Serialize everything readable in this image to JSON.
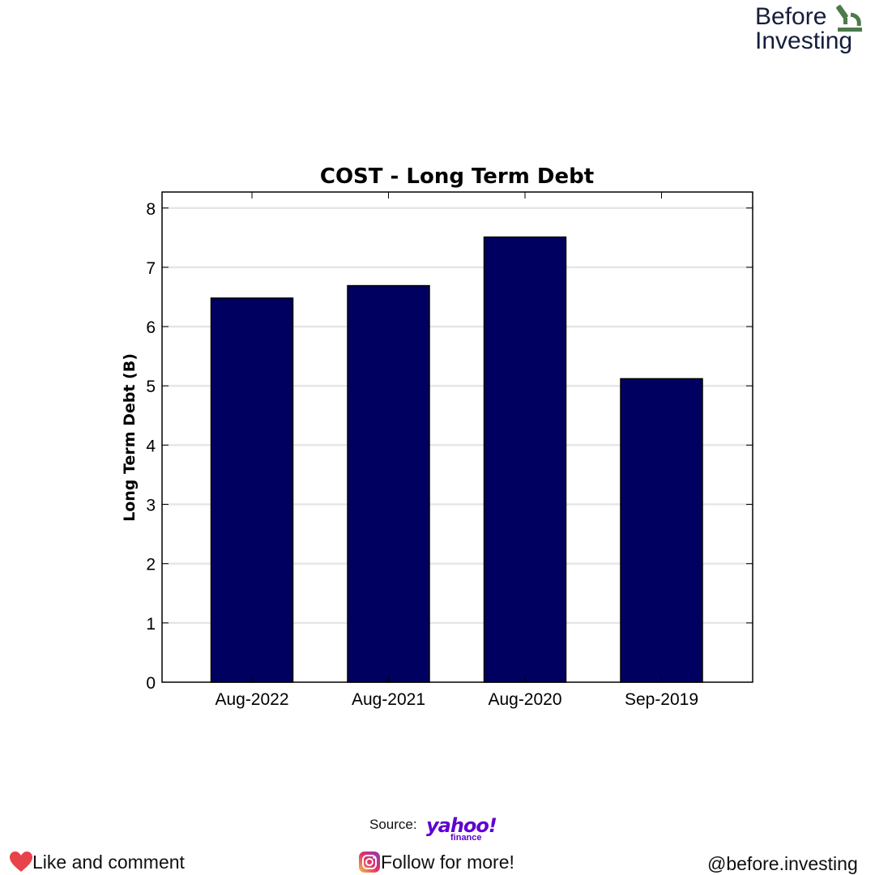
{
  "brand": {
    "line1": "Before",
    "line2": "Investing"
  },
  "chart_data": {
    "type": "bar",
    "title": "COST - Long Term Debt",
    "xlabel": "",
    "ylabel": "Long Term Debt (B)",
    "categories": [
      "Aug-2022",
      "Aug-2021",
      "Aug-2020",
      "Sep-2019"
    ],
    "values": [
      6.48,
      6.69,
      7.51,
      5.12
    ],
    "ylim": [
      0,
      8.27
    ],
    "yticks": [
      "0",
      "1",
      "2",
      "3",
      "4",
      "5",
      "6",
      "7",
      "8"
    ],
    "grid": "horizontal",
    "bar_color": "#000060"
  },
  "footer": {
    "source_label": "Source:",
    "source_logo": "yahoo!",
    "source_logo_sub": "finance",
    "like": "Like and comment",
    "follow": "Follow for more!",
    "handle": "@before.investing",
    "like_icon": "heart-icon",
    "follow_icon": "instagram-icon",
    "heart_color": "#e8424a",
    "logo_color": "#5f01d1"
  }
}
